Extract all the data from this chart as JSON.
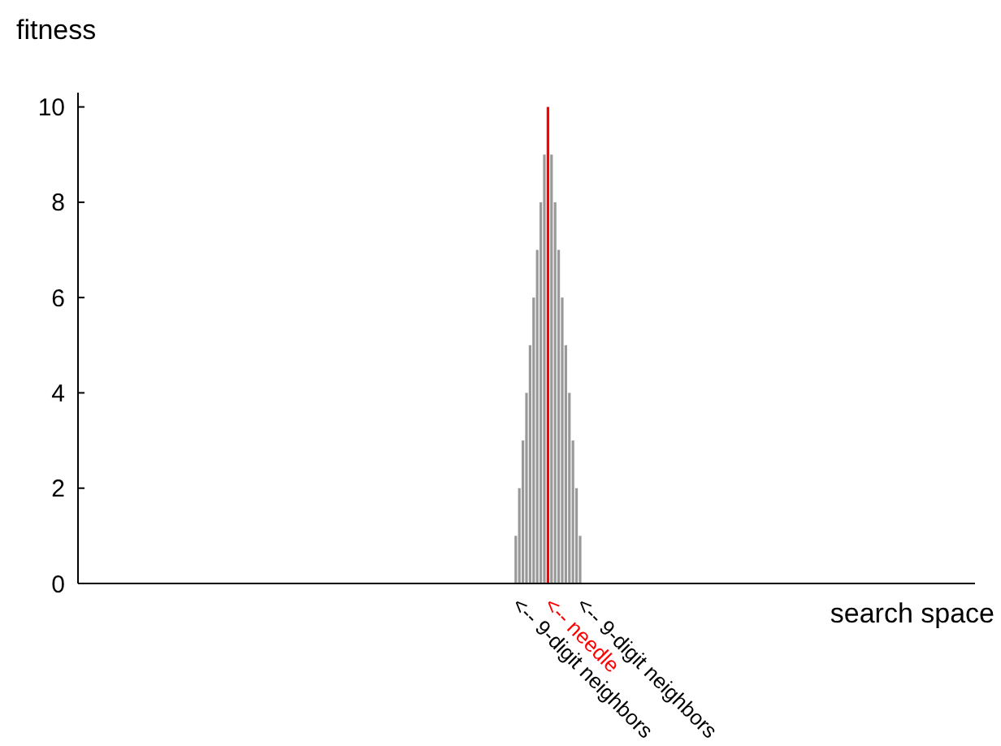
{
  "chart_data": {
    "type": "bar",
    "xlabel": "search space",
    "ylabel": "fitness",
    "categories": [
      null,
      null,
      null,
      null,
      null,
      null,
      null,
      null,
      null,
      null,
      null,
      null,
      null,
      null,
      null,
      null,
      null,
      null,
      null,
      null,
      null,
      null,
      null,
      null,
      null,
      null,
      null,
      null,
      null,
      null,
      null,
      null,
      null,
      null,
      null,
      null,
      null,
      null,
      null,
      null,
      null,
      null,
      null,
      null,
      null,
      null,
      null,
      null,
      null,
      null,
      null,
      null,
      null,
      null,
      null,
      null,
      null,
      null,
      null,
      null,
      null,
      null,
      null,
      null,
      null,
      null,
      null,
      null,
      null,
      null,
      null,
      null,
      null,
      null,
      null,
      null,
      null,
      null,
      null,
      null,
      null,
      null,
      null,
      null,
      null,
      null,
      null,
      null,
      null,
      null,
      null,
      null,
      null,
      null,
      null,
      null,
      null,
      null,
      null,
      null,
      null,
      null,
      null,
      null,
      null,
      null,
      null,
      null,
      null,
      null,
      null,
      null,
      null,
      null,
      null,
      null,
      null,
      null,
      null,
      null,
      null,
      null,
      null,
      null,
      null,
      null,
      null,
      null,
      null,
      null,
      null,
      null,
      null,
      null,
      null,
      null,
      null,
      null,
      null,
      null,
      null,
      null,
      null,
      null,
      null,
      null,
      null,
      null,
      null,
      null,
      null,
      null,
      null,
      null,
      null,
      null,
      null,
      null,
      null,
      null,
      null,
      null,
      null,
      null,
      null,
      null,
      null,
      null,
      null,
      null,
      null,
      null,
      null,
      null,
      null,
      null,
      null,
      null,
      null,
      null,
      null,
      null,
      null,
      null,
      null,
      null,
      null,
      null,
      null,
      null,
      null,
      null,
      null,
      null,
      null,
      null,
      null,
      null,
      null,
      null,
      null,
      null,
      null,
      null,
      null,
      null,
      null,
      null,
      null,
      null,
      null,
      null,
      null,
      null,
      null,
      null,
      null,
      null,
      null,
      null,
      null,
      null,
      null,
      null,
      null,
      null,
      null,
      null,
      null,
      null,
      null,
      null,
      null,
      null,
      null,
      null,
      null,
      null,
      null,
      null,
      null,
      null,
      null,
      null,
      null,
      null,
      null,
      null,
      null,
      null,
      null
    ],
    "values": [
      null,
      null,
      null,
      null,
      null,
      null,
      null,
      null,
      null,
      null,
      null,
      null,
      null,
      null,
      null,
      null,
      null,
      null,
      null,
      null,
      null,
      null,
      null,
      null,
      null,
      null,
      null,
      null,
      null,
      null,
      null,
      null,
      null,
      null,
      null,
      null,
      null,
      null,
      null,
      null,
      null,
      null,
      null,
      null,
      null,
      null,
      null,
      null,
      null,
      null,
      null,
      null,
      null,
      null,
      null,
      null,
      null,
      null,
      null,
      null,
      null,
      null,
      null,
      null,
      null,
      null,
      null,
      null,
      null,
      null,
      null,
      null,
      null,
      null,
      null,
      null,
      null,
      null,
      null,
      null,
      null,
      null,
      null,
      null,
      null,
      null,
      null,
      null,
      null,
      null,
      null,
      null,
      null,
      null,
      null,
      null,
      null,
      null,
      null,
      null,
      null,
      null,
      null,
      null,
      null,
      null,
      null,
      null,
      null,
      null,
      null,
      null,
      null,
      null,
      null,
      null,
      null,
      null,
      null,
      null,
      null,
      null,
      1,
      2,
      3,
      4,
      5,
      6,
      7,
      8,
      9,
      10,
      9,
      8,
      7,
      6,
      5,
      4,
      3,
      2,
      1,
      null,
      null,
      null,
      null,
      null,
      null,
      null,
      null,
      null,
      null,
      null,
      null,
      null,
      null,
      null,
      null,
      null,
      null,
      null,
      null,
      null,
      null,
      null,
      null,
      null,
      null,
      null,
      null,
      null,
      null,
      null,
      null,
      null,
      null,
      null,
      null,
      null,
      null,
      null,
      null,
      null,
      null,
      null,
      null,
      null,
      null,
      null,
      null,
      null,
      null,
      null,
      null,
      null,
      null,
      null,
      null,
      null,
      null,
      null,
      null,
      null,
      null,
      null,
      null,
      null,
      null,
      null,
      null,
      null,
      null,
      null,
      null,
      null,
      null,
      null,
      null,
      null,
      null,
      null,
      null,
      null,
      null,
      null,
      null,
      null,
      null,
      null,
      null,
      null,
      null,
      null,
      null,
      null,
      null,
      null,
      null,
      null,
      null,
      null,
      null,
      null,
      null,
      null,
      null,
      null,
      null,
      null,
      null,
      null,
      null
    ],
    "colors": [
      null,
      null,
      null,
      null,
      null,
      null,
      null,
      null,
      null,
      null,
      null,
      null,
      null,
      null,
      null,
      null,
      null,
      null,
      null,
      null,
      null,
      null,
      null,
      null,
      null,
      null,
      null,
      null,
      null,
      null,
      null,
      null,
      null,
      null,
      null,
      null,
      null,
      null,
      null,
      null,
      null,
      null,
      null,
      null,
      null,
      null,
      null,
      null,
      null,
      null,
      null,
      null,
      null,
      null,
      null,
      null,
      null,
      null,
      null,
      null,
      null,
      null,
      null,
      null,
      null,
      null,
      null,
      null,
      null,
      null,
      null,
      null,
      null,
      null,
      null,
      null,
      null,
      null,
      null,
      null,
      null,
      null,
      null,
      null,
      null,
      null,
      null,
      null,
      null,
      null,
      null,
      null,
      null,
      null,
      null,
      null,
      null,
      null,
      null,
      null,
      null,
      null,
      null,
      null,
      null,
      null,
      null,
      null,
      null,
      null,
      null,
      null,
      null,
      null,
      null,
      null,
      null,
      null,
      null,
      null,
      null,
      null,
      "#999999",
      "#999999",
      "#999999",
      "#999999",
      "#999999",
      "#999999",
      "#999999",
      "#999999",
      "#999999",
      "#ff0000",
      "#999999",
      "#999999",
      "#999999",
      "#999999",
      "#999999",
      "#999999",
      "#999999",
      "#999999",
      "#999999",
      null,
      null,
      null,
      null,
      null,
      null,
      null,
      null,
      null,
      null,
      null,
      null,
      null,
      null,
      null,
      null,
      null,
      null,
      null,
      null,
      null,
      null,
      null,
      null,
      null,
      null,
      null,
      null,
      null,
      null,
      null,
      null,
      null,
      null,
      null,
      null,
      null,
      null,
      null,
      null,
      null,
      null,
      null,
      null,
      null,
      null,
      null,
      null,
      null,
      null,
      null,
      null,
      null,
      null,
      null,
      null,
      null,
      null,
      null,
      null,
      null,
      null,
      null,
      null,
      null,
      null,
      null,
      null,
      null,
      null,
      null,
      null,
      null,
      null,
      null,
      null,
      null,
      null,
      null,
      null,
      null,
      null,
      null,
      null,
      null,
      null,
      null,
      null,
      null,
      null,
      null,
      null,
      null,
      null,
      null,
      null,
      null,
      null,
      null,
      null,
      null,
      null,
      null,
      null,
      null,
      null,
      null,
      null,
      null,
      null
    ],
    "ylim": [
      0,
      10.3
    ],
    "yticks": [
      0,
      2,
      4,
      6,
      8,
      10
    ],
    "annotations": [
      "<-- 9-digit neighbors",
      "<-- needle",
      "<-- 9-digit neighbors"
    ]
  }
}
